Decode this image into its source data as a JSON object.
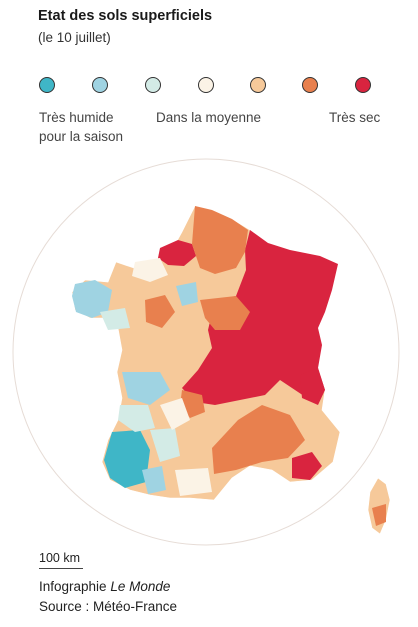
{
  "title": "Etat des sols superficiels",
  "subtitle": "(le 10 juillet)",
  "legend": {
    "colors": [
      "#3fb6c7",
      "#9fd3e2",
      "#d3ebe6",
      "#fbf3e6",
      "#f6c99a",
      "#e8804e",
      "#d9243f"
    ],
    "labels": {
      "humid_line1": "Très humide",
      "humid_line2": "pour la saison",
      "average": "Dans la moyenne",
      "dry": "Très sec"
    }
  },
  "scale": {
    "label": "100 km"
  },
  "credit": {
    "prefix": "Infographie ",
    "outlet": "Le Monde"
  },
  "source": "Source : Météo-France"
}
